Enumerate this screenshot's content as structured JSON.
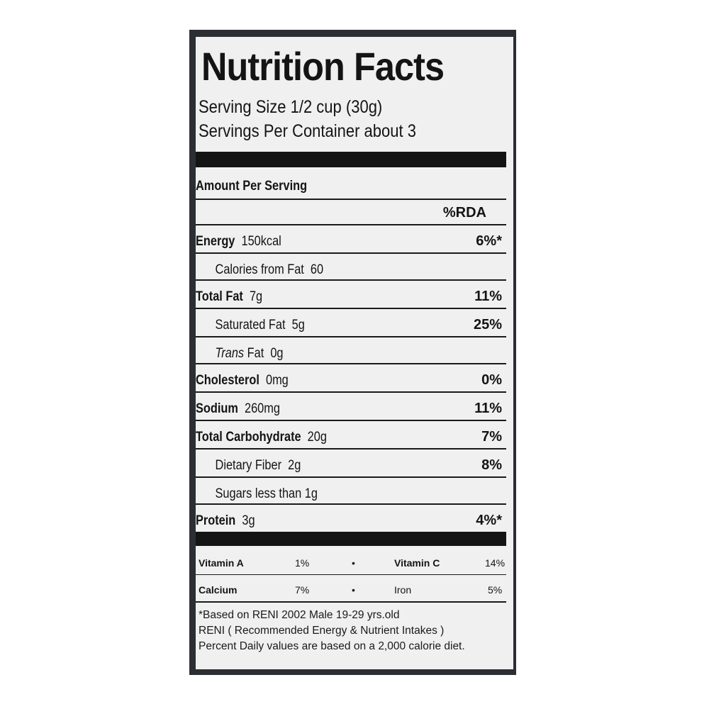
{
  "title": "Nutrition Facts",
  "serving_size": "Serving Size 1/2 cup (30g)",
  "servings_per_container": "Servings Per Container about 3",
  "amount_per_serving": "Amount Per Serving",
  "rda_header": "%RDA",
  "nutrients": [
    {
      "name": "Energy",
      "amount": "150kcal",
      "pct": "6%*"
    },
    {
      "name": "Calories from Fat",
      "amount": "60",
      "pct": ""
    },
    {
      "name": "Total Fat",
      "amount": "7g",
      "pct": "11%"
    },
    {
      "name": "Saturated Fat",
      "amount": "5g",
      "pct": "25%"
    },
    {
      "name": "Trans",
      "name_suffix": "Fat",
      "amount": "0g",
      "pct": ""
    },
    {
      "name": "Cholesterol",
      "amount": "0mg",
      "pct": "0%"
    },
    {
      "name": "Sodium",
      "amount": "260mg",
      "pct": "11%"
    },
    {
      "name": "Total Carbohydrate",
      "amount": "20g",
      "pct": "7%"
    },
    {
      "name": "Dietary Fiber",
      "amount": "2g",
      "pct": "8%"
    },
    {
      "name": "Sugars less than",
      "amount": "1g",
      "pct": ""
    },
    {
      "name": "Protein",
      "amount": "3g",
      "pct": "4%*"
    }
  ],
  "vitamins": [
    {
      "name": "Vitamin A",
      "pct": "1%",
      "bullet": "•",
      "name2": "Vitamin C",
      "pct2": "14%"
    },
    {
      "name": "Calcium",
      "pct": "7%",
      "bullet": "•",
      "name2": "Iron",
      "pct2": "5%"
    }
  ],
  "footnotes": [
    "*Based on RENI 2002 Male 19-29 yrs.old",
    "RENI ( Recommended Energy & Nutrient Intakes )",
    "Percent Daily values are based on a 2,000 calorie diet."
  ]
}
